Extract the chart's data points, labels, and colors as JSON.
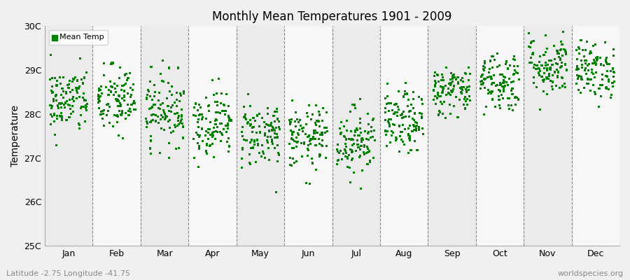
{
  "title": "Monthly Mean Temperatures 1901 - 2009",
  "ylabel": "Temperature",
  "xlabel": "",
  "months": [
    "Jan",
    "Feb",
    "Mar",
    "Apr",
    "May",
    "Jun",
    "Jul",
    "Aug",
    "Sep",
    "Oct",
    "Nov",
    "Dec"
  ],
  "month_positions": [
    1,
    2,
    3,
    4,
    5,
    6,
    7,
    8,
    9,
    10,
    11,
    12
  ],
  "ylim": [
    25,
    30
  ],
  "ytick_labels": [
    "25C",
    "26C",
    "27C",
    "28C",
    "29C",
    "30C"
  ],
  "ytick_values": [
    25,
    26,
    27,
    28,
    29,
    30
  ],
  "marker_color": "#008000",
  "marker": "s",
  "markersize": 2.2,
  "legend_label": "Mean Temp",
  "subtitle": "Latitude -2.75 Longitude -41.75",
  "watermark": "worldspecies.org",
  "n_years": 109,
  "start_year": 1901,
  "end_year": 2009,
  "band_color_odd": "#ebebeb",
  "band_color_even": "#f7f7f7",
  "monthly_mean": [
    28.3,
    28.3,
    28.1,
    27.8,
    27.55,
    27.45,
    27.4,
    27.8,
    28.55,
    28.75,
    29.1,
    29.0
  ],
  "monthly_std": [
    0.38,
    0.4,
    0.4,
    0.38,
    0.38,
    0.36,
    0.38,
    0.35,
    0.28,
    0.35,
    0.35,
    0.32
  ],
  "random_seed": 42,
  "fig_bg_color": "#f0f0f0"
}
